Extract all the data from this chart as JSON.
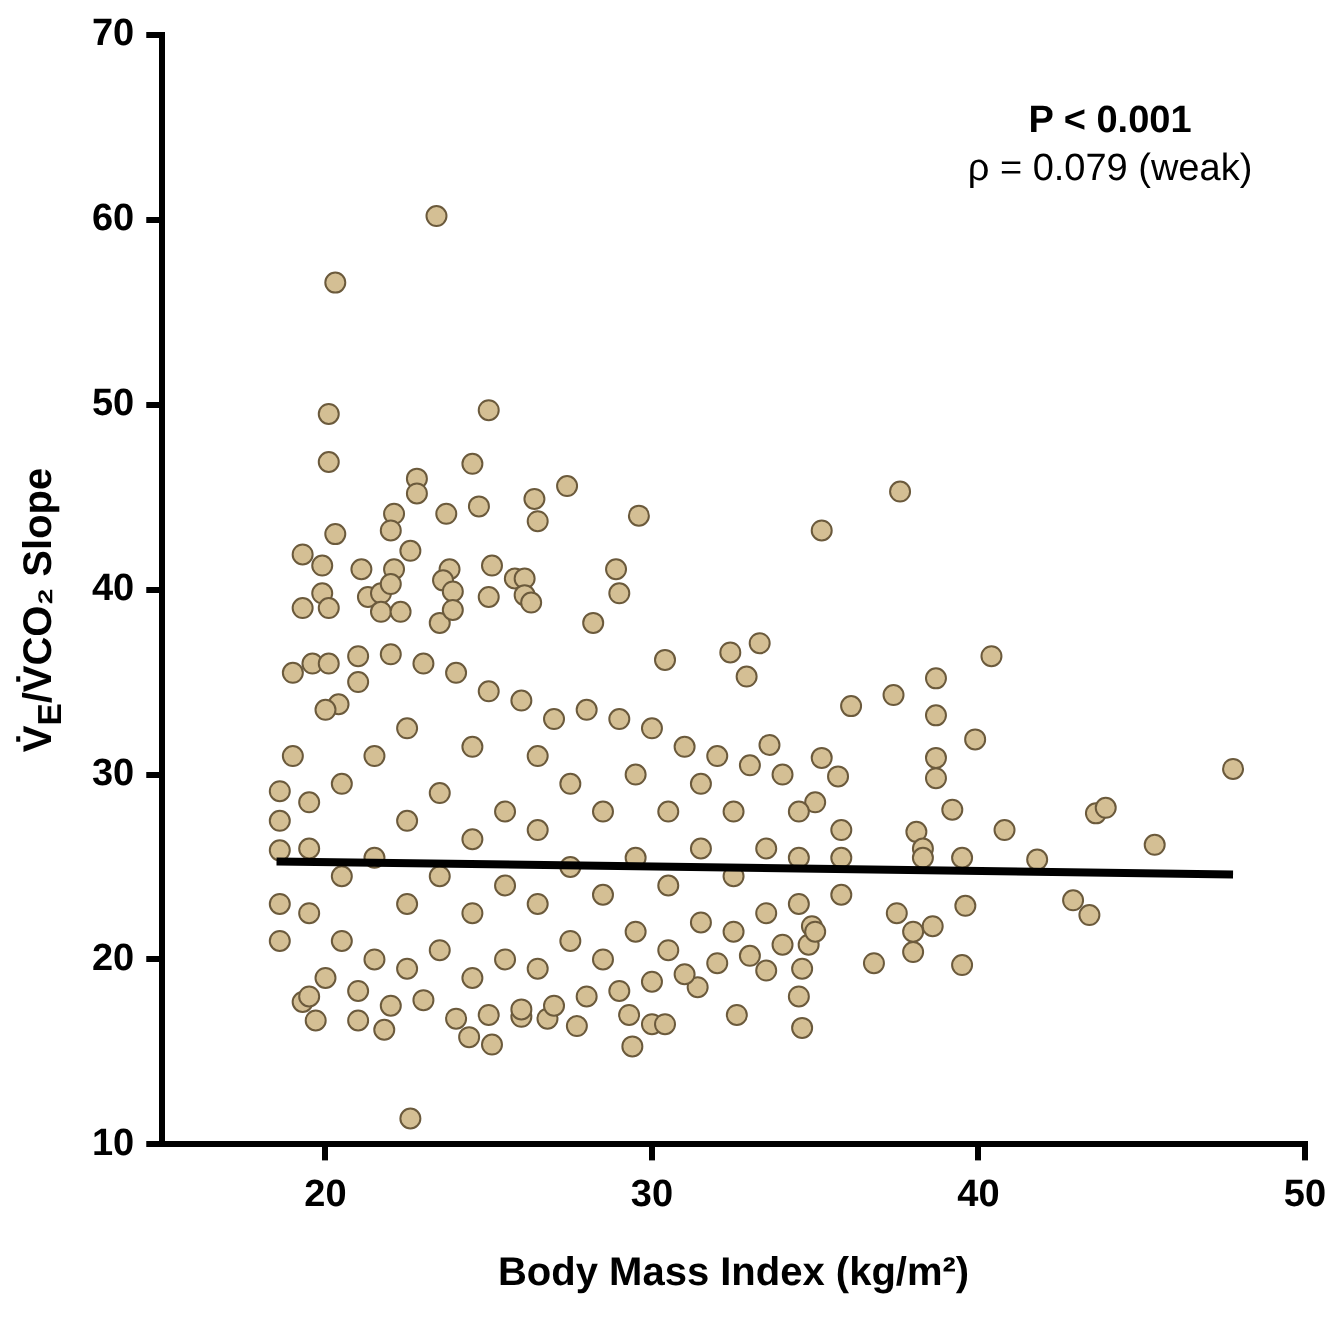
{
  "chart_data": {
    "type": "scatter",
    "xlabel": "Body Mass Index (kg/m²)",
    "ylabel": "V̇$_{E}$/V̇CO₂ Slope",
    "annotations": [
      "P < 0.001",
      "ρ = 0.079 (weak)"
    ],
    "xlim": [
      15,
      50
    ],
    "xticks": [
      20,
      30,
      40,
      50
    ],
    "ylim": [
      10,
      70
    ],
    "yticks": [
      10,
      20,
      30,
      40,
      50,
      60,
      70
    ],
    "grid": false,
    "legend": false,
    "series": [
      {
        "marker": "circle",
        "color": "#d4bf94",
        "x": [
          23.4,
          20.3,
          20.1,
          25.0,
          20.1,
          24.5,
          22.8,
          22.8,
          27.4,
          37.6,
          24.7,
          26.4,
          26.5,
          23.7,
          22.1,
          29.6,
          35.2,
          22.0,
          20.3,
          19.3,
          22.6,
          19.9,
          21.1,
          22.1,
          23.8,
          25.1,
          28.9,
          25.8,
          26.1,
          23.6,
          19.9,
          19.3,
          20.1,
          21.3,
          21.7,
          22.0,
          23.9,
          25.0,
          26.1,
          26.3,
          29.0,
          21.7,
          22.3,
          23.5,
          23.9,
          28.2,
          22.6,
          47.8,
          45.4,
          41.8,
          42.9,
          43.4,
          43.6,
          43.9,
          40.4,
          39.9,
          39.2,
          38.7,
          38.7,
          38.7,
          38.7,
          40.8,
          37.4,
          36.1,
          39.5,
          39.5,
          39.6,
          37.5,
          36.8,
          38.1,
          38.0,
          38.0,
          38.6,
          38.3,
          38.3,
          34.6,
          34.5,
          32.6,
          29.4,
          30.0,
          30.4,
          29.3,
          25.1,
          24.4,
          21.8,
          19.7,
          21.0,
          19.3,
          19.5,
          26.0,
          26.8,
          27.7,
          34.9,
          34.8,
          34.6,
          33.5,
          31.4,
          19.0,
          19.6,
          20.1,
          20.4,
          21.0,
          32.4,
          32.9,
          33.3,
          30.4,
          33.6,
          35.2,
          35.7,
          18.6,
          18.6,
          18.6,
          18.6,
          18.6,
          20,
          21,
          22,
          23,
          24,
          25,
          26,
          27,
          28,
          29,
          30,
          31,
          32,
          33,
          34,
          35,
          19,
          20,
          21,
          22,
          23,
          24,
          25,
          26,
          27,
          28,
          29,
          30,
          31,
          32,
          33,
          34,
          35,
          35.8,
          35.8,
          35.8,
          19.5,
          19.5,
          19.5,
          20.5,
          20.5,
          20.5,
          21.5,
          21.5,
          21.5,
          22.5,
          22.5,
          22.5,
          22.5,
          23.5,
          23.5,
          23.5,
          24.5,
          24.5,
          24.5,
          24.5,
          25.5,
          25.5,
          25.5,
          26.5,
          26.5,
          26.5,
          26.5,
          27.5,
          27.5,
          27.5,
          28.5,
          28.5,
          28.5,
          29.5,
          29.5,
          29.5,
          30.5,
          30.5,
          30.5,
          31.5,
          31.5,
          31.5,
          32.5,
          32.5,
          32.5,
          33.5,
          33.5,
          34.5,
          34.5,
          34.5
        ],
        "values": [
          60.2,
          56.6,
          49.5,
          49.7,
          46.9,
          46.8,
          46.0,
          45.2,
          45.6,
          45.3,
          44.5,
          44.9,
          43.7,
          44.1,
          44.1,
          44.0,
          43.2,
          43.2,
          43.0,
          41.9,
          42.1,
          41.3,
          41.1,
          41.1,
          41.1,
          41.3,
          41.1,
          40.6,
          40.6,
          40.5,
          39.8,
          39.0,
          39.0,
          39.6,
          39.8,
          40.3,
          39.9,
          39.6,
          39.7,
          39.3,
          39.8,
          38.8,
          38.8,
          38.2,
          38.9,
          38.2,
          11.4,
          30.3,
          26.2,
          25.4,
          23.2,
          22.4,
          27.9,
          28.2,
          36.4,
          31.9,
          28.1,
          29.8,
          30.9,
          33.2,
          35.2,
          27.0,
          34.3,
          33.7,
          25.5,
          19.7,
          22.9,
          22.5,
          19.8,
          26.9,
          21.5,
          20.4,
          21.8,
          26.0,
          25.5,
          16.3,
          18.0,
          17.0,
          15.3,
          16.5,
          16.5,
          17.0,
          15.4,
          15.8,
          16.2,
          16.7,
          16.7,
          17.7,
          18.0,
          16.9,
          16.8,
          16.4,
          21.8,
          20.8,
          19.5,
          19.4,
          18.5,
          35.5,
          36.0,
          36.0,
          33.8,
          36.4,
          36.6,
          35.3,
          37.1,
          36.2,
          31.6,
          30.9,
          29.9,
          21.0,
          23.0,
          25.9,
          27.5,
          29.1,
          19.0,
          18.3,
          17.5,
          17.8,
          16.8,
          17.0,
          17.3,
          17.5,
          18.0,
          18.3,
          18.8,
          19.2,
          19.8,
          20.2,
          20.8,
          21.5,
          31.0,
          33.5,
          35.0,
          36.5,
          36.0,
          35.5,
          34.5,
          34.0,
          33.0,
          33.5,
          33.0,
          32.5,
          31.5,
          31.0,
          30.5,
          30.0,
          28.5,
          23.5,
          25.5,
          27.0,
          22.5,
          26.0,
          28.5,
          21.0,
          24.5,
          29.5,
          20.0,
          25.5,
          31.0,
          19.5,
          23.0,
          27.5,
          32.5,
          20.5,
          24.5,
          29.0,
          19.0,
          22.5,
          26.5,
          31.5,
          20.0,
          24.0,
          28.0,
          19.5,
          23.0,
          27.0,
          31.0,
          21.0,
          25.0,
          29.5,
          20.0,
          23.5,
          28.0,
          21.5,
          25.5,
          30.0,
          20.5,
          24.0,
          28.0,
          22.0,
          26.0,
          29.5,
          21.5,
          24.5,
          28.0,
          22.5,
          26.0,
          23.0,
          25.5,
          28.0
        ]
      },
      {
        "type": "line",
        "color": "#000000",
        "x": [
          18.5,
          47.8
        ],
        "values": [
          25.3,
          24.6
        ]
      }
    ]
  }
}
